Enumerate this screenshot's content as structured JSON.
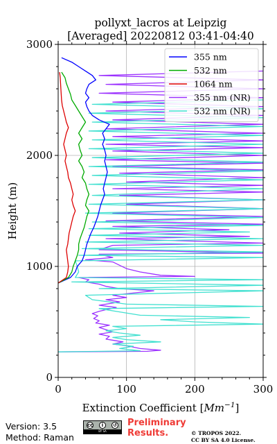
{
  "chart_data": {
    "type": "line",
    "title": "pollyxt_lacros at Leipzig",
    "subtitle": "[Averaged] 20220812 03:41-04:40",
    "xlabel": "Extinction Coefficient [Mm⁻¹]",
    "ylabel": "Height (m)",
    "xlim": [
      0,
      300
    ],
    "ylim": [
      0,
      3000
    ],
    "xticks": [
      "0",
      "100",
      "200",
      "300"
    ],
    "yticks": [
      "0",
      "1000",
      "2000",
      "3000"
    ],
    "grid": true,
    "legend_position": "top-right",
    "series": [
      {
        "name": "355 nm",
        "color": "#0000ff",
        "points": [
          [
            0,
            850
          ],
          [
            18,
            900
          ],
          [
            25,
            950
          ],
          [
            28,
            1000
          ],
          [
            35,
            1050
          ],
          [
            38,
            1100
          ],
          [
            40,
            1150
          ],
          [
            42,
            1200
          ],
          [
            45,
            1250
          ],
          [
            48,
            1300
          ],
          [
            52,
            1350
          ],
          [
            55,
            1400
          ],
          [
            58,
            1450
          ],
          [
            60,
            1500
          ],
          [
            62,
            1550
          ],
          [
            65,
            1600
          ],
          [
            68,
            1650
          ],
          [
            66,
            1700
          ],
          [
            68,
            1750
          ],
          [
            70,
            1800
          ],
          [
            72,
            1850
          ],
          [
            70,
            1900
          ],
          [
            68,
            1950
          ],
          [
            70,
            2000
          ],
          [
            68,
            2050
          ],
          [
            65,
            2100
          ],
          [
            68,
            2150
          ],
          [
            65,
            2200
          ],
          [
            70,
            2240
          ],
          [
            75,
            2280
          ],
          [
            60,
            2320
          ],
          [
            50,
            2360
          ],
          [
            45,
            2400
          ],
          [
            42,
            2440
          ],
          [
            40,
            2480
          ],
          [
            45,
            2520
          ],
          [
            40,
            2560
          ],
          [
            42,
            2600
          ],
          [
            45,
            2640
          ],
          [
            55,
            2680
          ],
          [
            50,
            2720
          ],
          [
            40,
            2760
          ],
          [
            30,
            2800
          ],
          [
            20,
            2840
          ],
          [
            5,
            2880
          ]
        ]
      },
      {
        "name": "532 nm",
        "color": "#00aa00",
        "points": [
          [
            0,
            850
          ],
          [
            15,
            900
          ],
          [
            20,
            950
          ],
          [
            22,
            1000
          ],
          [
            25,
            1050
          ],
          [
            28,
            1100
          ],
          [
            30,
            1150
          ],
          [
            30,
            1200
          ],
          [
            32,
            1250
          ],
          [
            35,
            1300
          ],
          [
            38,
            1350
          ],
          [
            40,
            1400
          ],
          [
            42,
            1450
          ],
          [
            45,
            1500
          ],
          [
            40,
            1550
          ],
          [
            42,
            1600
          ],
          [
            45,
            1650
          ],
          [
            42,
            1700
          ],
          [
            40,
            1750
          ],
          [
            35,
            1800
          ],
          [
            38,
            1850
          ],
          [
            35,
            1900
          ],
          [
            30,
            1950
          ],
          [
            35,
            2000
          ],
          [
            32,
            2050
          ],
          [
            30,
            2100
          ],
          [
            35,
            2150
          ],
          [
            30,
            2200
          ],
          [
            35,
            2250
          ],
          [
            40,
            2300
          ],
          [
            35,
            2350
          ],
          [
            30,
            2400
          ],
          [
            25,
            2450
          ],
          [
            20,
            2500
          ],
          [
            18,
            2550
          ],
          [
            15,
            2600
          ],
          [
            12,
            2650
          ],
          [
            10,
            2700
          ],
          [
            5,
            2750
          ]
        ]
      },
      {
        "name": "1064 nm",
        "color": "#dd0000",
        "points": [
          [
            0,
            850
          ],
          [
            12,
            900
          ],
          [
            14,
            950
          ],
          [
            15,
            1000
          ],
          [
            14,
            1050
          ],
          [
            13,
            1100
          ],
          [
            12,
            1150
          ],
          [
            14,
            1200
          ],
          [
            15,
            1250
          ],
          [
            16,
            1300
          ],
          [
            18,
            1350
          ],
          [
            20,
            1400
          ],
          [
            22,
            1450
          ],
          [
            25,
            1500
          ],
          [
            22,
            1550
          ],
          [
            20,
            1600
          ],
          [
            22,
            1650
          ],
          [
            20,
            1700
          ],
          [
            18,
            1750
          ],
          [
            15,
            1800
          ],
          [
            14,
            1850
          ],
          [
            12,
            1900
          ],
          [
            10,
            1950
          ],
          [
            12,
            2000
          ],
          [
            10,
            2050
          ],
          [
            8,
            2100
          ],
          [
            10,
            2150
          ],
          [
            12,
            2200
          ],
          [
            15,
            2250
          ],
          [
            12,
            2300
          ],
          [
            10,
            2350
          ],
          [
            8,
            2400
          ],
          [
            6,
            2450
          ],
          [
            5,
            2500
          ],
          [
            4,
            2600
          ],
          [
            3,
            2700
          ],
          [
            2,
            2750
          ]
        ]
      },
      {
        "name": "355 nm (NR)",
        "color": "#9b30ff",
        "points": [
          [
            0,
            230
          ],
          [
            130,
            235
          ],
          [
            150,
            245
          ],
          [
            120,
            260
          ],
          [
            100,
            285
          ],
          [
            80,
            300
          ],
          [
            95,
            320
          ],
          [
            70,
            345
          ],
          [
            75,
            370
          ],
          [
            60,
            390
          ],
          [
            80,
            410
          ],
          [
            70,
            430
          ],
          [
            60,
            450
          ],
          [
            75,
            470
          ],
          [
            55,
            490
          ],
          [
            60,
            510
          ],
          [
            52,
            530
          ],
          [
            58,
            555
          ],
          [
            50,
            575
          ],
          [
            60,
            595
          ],
          [
            70,
            610
          ],
          [
            85,
            630
          ],
          [
            60,
            650
          ],
          [
            75,
            665
          ],
          [
            90,
            680
          ],
          [
            70,
            700
          ],
          [
            100,
            720
          ],
          [
            80,
            740
          ],
          [
            110,
            760
          ],
          [
            140,
            780
          ],
          [
            90,
            800
          ],
          [
            70,
            820
          ],
          [
            60,
            840
          ],
          [
            40,
            860
          ],
          [
            45,
            880
          ],
          [
            30,
            900
          ],
          [
            200,
            910
          ],
          [
            150,
            920
          ],
          [
            120,
            950
          ],
          [
            100,
            980
          ],
          [
            90,
            1010
          ],
          [
            80,
            1040
          ],
          [
            40,
            1060
          ],
          [
            80,
            1080
          ],
          [
            60,
            1110
          ],
          [
            300,
            1120
          ],
          [
            60,
            1150
          ],
          [
            80,
            1190
          ],
          [
            300,
            1210
          ],
          [
            70,
            1250
          ],
          [
            280,
            1270
          ],
          [
            90,
            1300
          ],
          [
            250,
            1330
          ],
          [
            80,
            1360
          ],
          [
            300,
            1380
          ],
          [
            70,
            1410
          ],
          [
            300,
            1450
          ],
          [
            80,
            1480
          ],
          [
            300,
            1520
          ],
          [
            100,
            1560
          ],
          [
            300,
            1600
          ],
          [
            90,
            1640
          ],
          [
            300,
            1670
          ],
          [
            80,
            1700
          ],
          [
            300,
            1730
          ],
          [
            100,
            1760
          ],
          [
            300,
            1800
          ],
          [
            90,
            1840
          ],
          [
            300,
            1870
          ],
          [
            80,
            1900
          ],
          [
            300,
            1930
          ],
          [
            70,
            1960
          ],
          [
            300,
            2000
          ],
          [
            80,
            2040
          ],
          [
            300,
            2070
          ],
          [
            70,
            2100
          ],
          [
            300,
            2130
          ],
          [
            80,
            2170
          ],
          [
            300,
            2200
          ],
          [
            70,
            2240
          ],
          [
            300,
            2280
          ],
          [
            80,
            2320
          ],
          [
            300,
            2360
          ],
          [
            70,
            2400
          ],
          [
            300,
            2440
          ],
          [
            80,
            2480
          ],
          [
            300,
            2520
          ],
          [
            60,
            2560
          ],
          [
            300,
            2600
          ],
          [
            70,
            2640
          ],
          [
            300,
            2680
          ],
          [
            60,
            2720
          ],
          [
            300,
            2760
          ]
        ]
      },
      {
        "name": "532 nm (NR)",
        "color": "#40e0d0",
        "points": [
          [
            0,
            230
          ],
          [
            120,
            240
          ],
          [
            90,
            260
          ],
          [
            110,
            280
          ],
          [
            80,
            300
          ],
          [
            150,
            320
          ],
          [
            100,
            340
          ],
          [
            80,
            360
          ],
          [
            120,
            380
          ],
          [
            90,
            400
          ],
          [
            70,
            420
          ],
          [
            100,
            440
          ],
          [
            80,
            460
          ],
          [
            300,
            480
          ],
          [
            200,
            500
          ],
          [
            150,
            520
          ],
          [
            280,
            540
          ],
          [
            120,
            560
          ],
          [
            90,
            590
          ],
          [
            60,
            620
          ],
          [
            300,
            640
          ],
          [
            100,
            660
          ],
          [
            50,
            700
          ],
          [
            40,
            740
          ],
          [
            300,
            780
          ],
          [
            60,
            800
          ],
          [
            300,
            830
          ],
          [
            20,
            860
          ],
          [
            300,
            880
          ],
          [
            25,
            900
          ],
          [
            30,
            950
          ],
          [
            28,
            1000
          ],
          [
            25,
            1050
          ],
          [
            300,
            1080
          ],
          [
            30,
            1100
          ],
          [
            300,
            1130
          ],
          [
            35,
            1160
          ],
          [
            300,
            1190
          ],
          [
            40,
            1220
          ],
          [
            300,
            1250
          ],
          [
            45,
            1280
          ],
          [
            280,
            1310
          ],
          [
            45,
            1340
          ],
          [
            300,
            1370
          ],
          [
            50,
            1400
          ],
          [
            300,
            1440
          ],
          [
            40,
            1480
          ],
          [
            300,
            1520
          ],
          [
            45,
            1560
          ],
          [
            300,
            1600
          ],
          [
            50,
            1640
          ],
          [
            300,
            1700
          ],
          [
            45,
            1740
          ],
          [
            300,
            1780
          ],
          [
            50,
            1820
          ],
          [
            300,
            1860
          ],
          [
            45,
            1900
          ],
          [
            300,
            1940
          ],
          [
            50,
            1980
          ],
          [
            300,
            2020
          ],
          [
            45,
            2060
          ],
          [
            300,
            2100
          ],
          [
            50,
            2140
          ],
          [
            300,
            2180
          ],
          [
            45,
            2220
          ],
          [
            300,
            2260
          ],
          [
            50,
            2300
          ],
          [
            300,
            2340
          ],
          [
            45,
            2380
          ],
          [
            300,
            2420
          ],
          [
            50,
            2460
          ],
          [
            300,
            2500
          ]
        ]
      }
    ]
  },
  "footer": {
    "version": "Version: 3.5",
    "method": "Method: Raman",
    "cc_badge_text": "BY   SA",
    "preliminary_line1": "Preliminary",
    "preliminary_line2": "Results.",
    "copyright_line1": "© TROPOS 2022.",
    "copyright_line2": "CC BY SA 4.0 License."
  }
}
